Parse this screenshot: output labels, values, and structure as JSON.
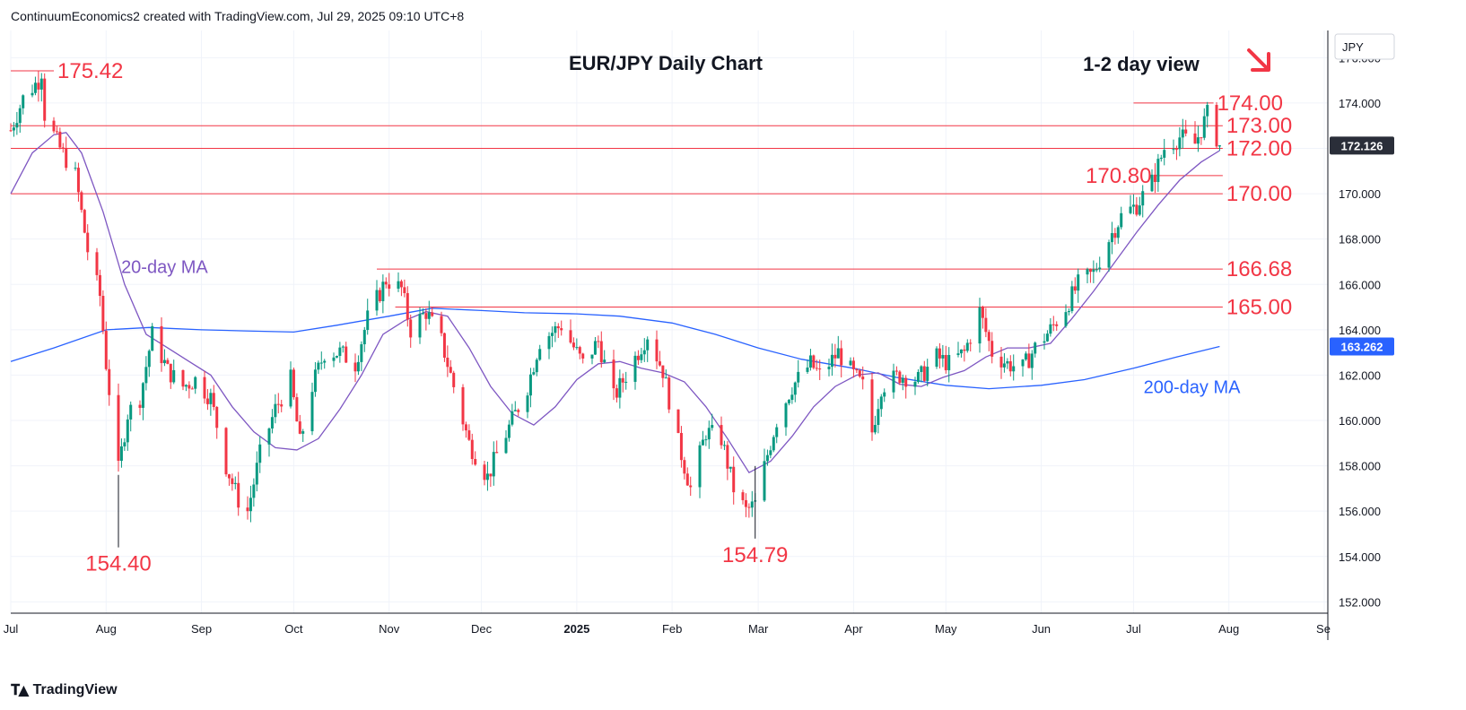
{
  "header": {
    "text": "ContinuumEconomics2 created with TradingView.com, Jul 29, 2025 09:10 UTC+8"
  },
  "footer": {
    "brand": "TradingView"
  },
  "colors": {
    "up": "#089981",
    "down": "#f23645",
    "ma20": "#7e57c2",
    "ma200": "#2962ff",
    "level": "#f23645",
    "text": "#131722",
    "grid": "#f0f3fa"
  },
  "chart_data": {
    "type": "candlestick",
    "title": "EUR/JPY Daily Chart",
    "subtitle": "1-2 day view",
    "direction_icon": "down-right-arrow",
    "currency": "JPY",
    "ylim": [
      151.5,
      177.2
    ],
    "y_ticks": [
      "176.000",
      "174.000",
      "172.000",
      "170.000",
      "168.000",
      "166.000",
      "164.000",
      "162.000",
      "160.000",
      "158.000",
      "156.000",
      "154.000",
      "152.000"
    ],
    "y_tick_values": [
      176,
      174,
      172,
      170,
      168,
      166,
      164,
      162,
      160,
      158,
      156,
      154,
      152
    ],
    "x_ticks": [
      "Jul",
      "Aug",
      "Sep",
      "Oct",
      "Nov",
      "Dec",
      "2025",
      "Feb",
      "Mar",
      "Apr",
      "May",
      "Jun",
      "Jul",
      "Aug",
      "Se"
    ],
    "x_tick_dates": [
      "2024-07-01",
      "2024-08-01",
      "2024-09-01",
      "2024-10-01",
      "2024-11-01",
      "2024-12-01",
      "2025-01-01",
      "2025-02-01",
      "2025-03-01",
      "2025-04-01",
      "2025-05-01",
      "2025-06-01",
      "2025-07-01",
      "2025-08-01",
      "2025-09-01"
    ],
    "x_range": [
      "2024-07-01",
      "2025-09-01"
    ],
    "last_price": {
      "label": "172.126",
      "value": 172.126
    },
    "ma200_last": {
      "label": "163.262",
      "value": 163.262
    },
    "levels": [
      {
        "label": "175.42",
        "value": 175.42,
        "from": "2024-07-01",
        "to": "2024-07-15",
        "label_at": "right"
      },
      {
        "label": "174.00",
        "value": 174.0,
        "from": "2025-07-01",
        "to": "2025-07-27",
        "label_at": "right"
      },
      {
        "label": "173.00",
        "value": 173.0,
        "from": "2024-07-01",
        "to": "2025-07-30",
        "label_at": "right"
      },
      {
        "label": "172.00",
        "value": 172.0,
        "from": "2024-07-01",
        "to": "2025-07-30",
        "label_at": "right"
      },
      {
        "label": "170.80",
        "value": 170.8,
        "from": "2025-07-08",
        "to": "2025-07-30",
        "label_at": "left"
      },
      {
        "label": "170.00",
        "value": 170.0,
        "from": "2024-07-01",
        "to": "2025-07-30",
        "label_at": "right"
      },
      {
        "label": "166.68",
        "value": 166.68,
        "from": "2024-10-28",
        "to": "2025-07-30",
        "label_at": "right"
      },
      {
        "label": "165.00",
        "value": 165.0,
        "from": "2024-11-03",
        "to": "2025-07-30",
        "label_at": "right"
      }
    ],
    "annotations": [
      {
        "text": "154.40",
        "date": "2024-08-05",
        "value": 154.4,
        "kind": "low"
      },
      {
        "text": "154.79",
        "date": "2025-02-28",
        "value": 154.79,
        "kind": "low"
      }
    ],
    "series_labels": [
      {
        "text": "20-day MA",
        "date": "2024-08-20",
        "value": 166.5,
        "color_key": "ma20"
      },
      {
        "text": "200-day MA",
        "date": "2025-07-20",
        "value": 161.2,
        "color_key": "ma200"
      }
    ],
    "price_path": [
      [
        "2024-07-01",
        172.8
      ],
      [
        "2024-07-05",
        174.2
      ],
      [
        "2024-07-10",
        175.0
      ],
      [
        "2024-07-11",
        175.42
      ],
      [
        "2024-07-12",
        173.5
      ],
      [
        "2024-07-17",
        172.0
      ],
      [
        "2024-07-22",
        170.8
      ],
      [
        "2024-07-26",
        167.5
      ],
      [
        "2024-07-30",
        165.5
      ],
      [
        "2024-08-01",
        162.5
      ],
      [
        "2024-08-05",
        157.8
      ],
      [
        "2024-08-08",
        160.3
      ],
      [
        "2024-08-12",
        161.0
      ],
      [
        "2024-08-16",
        163.8
      ],
      [
        "2024-08-21",
        162.2
      ],
      [
        "2024-08-26",
        161.5
      ],
      [
        "2024-08-30",
        161.8
      ],
      [
        "2024-09-04",
        161.0
      ],
      [
        "2024-09-09",
        158.0
      ],
      [
        "2024-09-13",
        156.5
      ],
      [
        "2024-09-16",
        156.0
      ],
      [
        "2024-09-20",
        158.5
      ],
      [
        "2024-09-25",
        160.5
      ],
      [
        "2024-09-30",
        161.8
      ],
      [
        "2024-10-03",
        159.0
      ],
      [
        "2024-10-07",
        161.5
      ],
      [
        "2024-10-11",
        163.0
      ],
      [
        "2024-10-16",
        163.0
      ],
      [
        "2024-10-21",
        162.5
      ],
      [
        "2024-10-25",
        164.5
      ],
      [
        "2024-10-31",
        166.2
      ],
      [
        "2024-11-05",
        165.8
      ],
      [
        "2024-11-08",
        164.0
      ],
      [
        "2024-11-13",
        164.8
      ],
      [
        "2024-11-18",
        163.5
      ],
      [
        "2024-11-22",
        161.5
      ],
      [
        "2024-11-27",
        159.0
      ],
      [
        "2024-12-03",
        157.5
      ],
      [
        "2024-12-06",
        158.5
      ],
      [
        "2024-12-11",
        160.0
      ],
      [
        "2024-12-16",
        161.5
      ],
      [
        "2024-12-20",
        163.5
      ],
      [
        "2024-12-27",
        164.2
      ],
      [
        "2025-01-03",
        162.5
      ],
      [
        "2025-01-08",
        163.5
      ],
      [
        "2025-01-13",
        161.0
      ],
      [
        "2025-01-17",
        162.0
      ],
      [
        "2025-01-24",
        163.8
      ],
      [
        "2025-01-29",
        162.2
      ],
      [
        "2025-02-03",
        159.0
      ],
      [
        "2025-02-07",
        157.0
      ],
      [
        "2025-02-12",
        159.5
      ],
      [
        "2025-02-17",
        159.2
      ],
      [
        "2025-02-21",
        157.0
      ],
      [
        "2025-02-25",
        156.0
      ],
      [
        "2025-02-28",
        156.3
      ],
      [
        "2025-03-04",
        158.5
      ],
      [
        "2025-03-07",
        160.0
      ],
      [
        "2025-03-12",
        161.5
      ],
      [
        "2025-03-18",
        162.5
      ],
      [
        "2025-03-21",
        162.0
      ],
      [
        "2025-03-27",
        163.0
      ],
      [
        "2025-04-01",
        162.0
      ],
      [
        "2025-04-04",
        161.5
      ],
      [
        "2025-04-07",
        159.5
      ],
      [
        "2025-04-10",
        161.5
      ],
      [
        "2025-04-16",
        162.0
      ],
      [
        "2025-04-22",
        161.8
      ],
      [
        "2025-04-28",
        162.8
      ],
      [
        "2025-05-02",
        162.5
      ],
      [
        "2025-05-07",
        163.0
      ],
      [
        "2025-05-12",
        164.8
      ],
      [
        "2025-05-16",
        163.0
      ],
      [
        "2025-05-21",
        162.5
      ],
      [
        "2025-05-26",
        162.3
      ],
      [
        "2025-05-30",
        163.2
      ],
      [
        "2025-06-04",
        164.0
      ],
      [
        "2025-06-09",
        165.0
      ],
      [
        "2025-06-13",
        166.0
      ],
      [
        "2025-06-18",
        166.5
      ],
      [
        "2025-06-23",
        168.0
      ],
      [
        "2025-06-27",
        169.0
      ],
      [
        "2025-07-02",
        169.5
      ],
      [
        "2025-07-07",
        170.5
      ],
      [
        "2025-07-11",
        172.0
      ],
      [
        "2025-07-16",
        172.5
      ],
      [
        "2025-07-21",
        172.2
      ],
      [
        "2025-07-25",
        173.5
      ],
      [
        "2025-07-29",
        172.126
      ]
    ],
    "ma20_path": [
      [
        "2024-07-01",
        170.0
      ],
      [
        "2024-07-08",
        171.8
      ],
      [
        "2024-07-15",
        172.6
      ],
      [
        "2024-07-19",
        172.7
      ],
      [
        "2024-07-24",
        171.8
      ],
      [
        "2024-07-31",
        169.2
      ],
      [
        "2024-08-07",
        166.0
      ],
      [
        "2024-08-14",
        163.8
      ],
      [
        "2024-08-21",
        163.2
      ],
      [
        "2024-08-28",
        162.6
      ],
      [
        "2024-09-04",
        162.0
      ],
      [
        "2024-09-11",
        160.6
      ],
      [
        "2024-09-18",
        159.5
      ],
      [
        "2024-09-25",
        158.8
      ],
      [
        "2024-10-02",
        158.7
      ],
      [
        "2024-10-09",
        159.2
      ],
      [
        "2024-10-16",
        160.5
      ],
      [
        "2024-10-23",
        162.0
      ],
      [
        "2024-10-30",
        163.8
      ],
      [
        "2024-11-06",
        164.4
      ],
      [
        "2024-11-13",
        164.8
      ],
      [
        "2024-11-20",
        164.6
      ],
      [
        "2024-11-27",
        163.2
      ],
      [
        "2024-12-04",
        161.5
      ],
      [
        "2024-12-11",
        160.3
      ],
      [
        "2024-12-18",
        159.8
      ],
      [
        "2024-12-25",
        160.6
      ],
      [
        "2025-01-01",
        161.8
      ],
      [
        "2025-01-08",
        162.5
      ],
      [
        "2025-01-15",
        162.6
      ],
      [
        "2025-01-22",
        162.3
      ],
      [
        "2025-01-29",
        162.1
      ],
      [
        "2025-02-05",
        161.7
      ],
      [
        "2025-02-12",
        160.6
      ],
      [
        "2025-02-19",
        159.2
      ],
      [
        "2025-02-26",
        157.7
      ],
      [
        "2025-03-05",
        158.2
      ],
      [
        "2025-03-12",
        159.3
      ],
      [
        "2025-03-19",
        160.6
      ],
      [
        "2025-03-26",
        161.5
      ],
      [
        "2025-04-02",
        162.0
      ],
      [
        "2025-04-09",
        162.1
      ],
      [
        "2025-04-16",
        161.6
      ],
      [
        "2025-04-23",
        161.5
      ],
      [
        "2025-04-30",
        161.9
      ],
      [
        "2025-05-07",
        162.2
      ],
      [
        "2025-05-14",
        162.8
      ],
      [
        "2025-05-21",
        163.2
      ],
      [
        "2025-05-28",
        163.2
      ],
      [
        "2025-06-04",
        163.4
      ],
      [
        "2025-06-11",
        164.5
      ],
      [
        "2025-06-18",
        165.7
      ],
      [
        "2025-06-25",
        167.0
      ],
      [
        "2025-07-02",
        168.3
      ],
      [
        "2025-07-09",
        169.5
      ],
      [
        "2025-07-16",
        170.6
      ],
      [
        "2025-07-23",
        171.4
      ],
      [
        "2025-07-29",
        171.9
      ]
    ],
    "ma200_path": [
      [
        "2024-07-01",
        162.6
      ],
      [
        "2024-07-15",
        163.2
      ],
      [
        "2024-08-01",
        164.0
      ],
      [
        "2024-08-15",
        164.1
      ],
      [
        "2024-09-01",
        164.0
      ],
      [
        "2024-09-15",
        163.95
      ],
      [
        "2024-10-01",
        163.9
      ],
      [
        "2024-10-15",
        164.2
      ],
      [
        "2024-11-01",
        164.6
      ],
      [
        "2024-11-15",
        164.95
      ],
      [
        "2024-12-01",
        164.85
      ],
      [
        "2024-12-15",
        164.75
      ],
      [
        "2025-01-01",
        164.7
      ],
      [
        "2025-01-15",
        164.6
      ],
      [
        "2025-02-01",
        164.3
      ],
      [
        "2025-02-15",
        163.8
      ],
      [
        "2025-03-01",
        163.2
      ],
      [
        "2025-03-15",
        162.7
      ],
      [
        "2025-04-01",
        162.3
      ],
      [
        "2025-04-15",
        161.9
      ],
      [
        "2025-05-01",
        161.55
      ],
      [
        "2025-05-15",
        161.4
      ],
      [
        "2025-06-01",
        161.55
      ],
      [
        "2025-06-15",
        161.8
      ],
      [
        "2025-07-01",
        162.3
      ],
      [
        "2025-07-15",
        162.8
      ],
      [
        "2025-07-29",
        163.262
      ]
    ]
  }
}
